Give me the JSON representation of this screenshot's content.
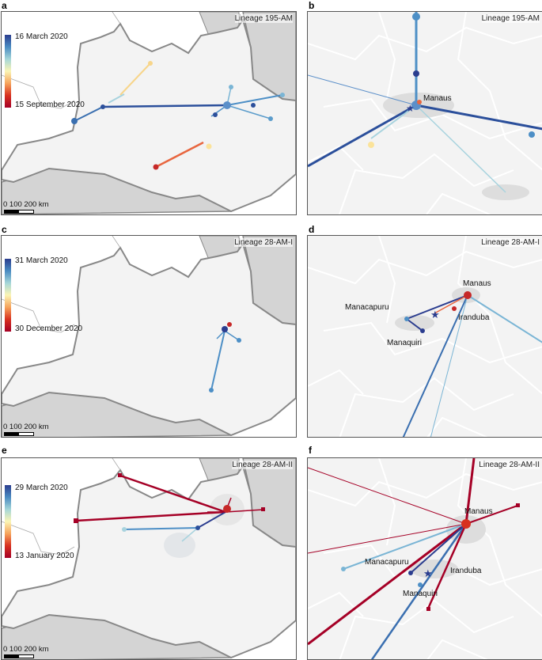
{
  "panels": [
    {
      "letter": "a",
      "lineage": "Lineage 195-AM",
      "legend_top": "16 March 2020",
      "legend_bottom": "15 September 2020",
      "scale": "0  100 200 km"
    },
    {
      "letter": "b",
      "lineage": "Lineage 195-AM",
      "cities": [
        "Manaus"
      ]
    },
    {
      "letter": "c",
      "lineage": "Lineage 28-AM-I",
      "legend_top": "31 March 2020",
      "legend_bottom": "30 December 2020",
      "scale": "0  100 200 km"
    },
    {
      "letter": "d",
      "lineage": "Lineage 28-AM-I",
      "cities": [
        "Manaus",
        "Manacapuru",
        "Iranduba",
        "Manaquiri"
      ]
    },
    {
      "letter": "e",
      "lineage": "Lineage 28-AM-II",
      "legend_top": "29 March 2020",
      "legend_bottom": "13 January 2020",
      "scale": "0  100 200 km"
    },
    {
      "letter": "f",
      "lineage": "Lineage 28-AM-II",
      "cities": [
        "Manaus",
        "Manacapuru",
        "Iranduba",
        "Manaquiri"
      ]
    }
  ],
  "colors": {
    "early": "#2b3d8f",
    "late": "#a50026",
    "state_fill": "#f3f3f3",
    "neighbor_fill": "#d4d4d4"
  }
}
